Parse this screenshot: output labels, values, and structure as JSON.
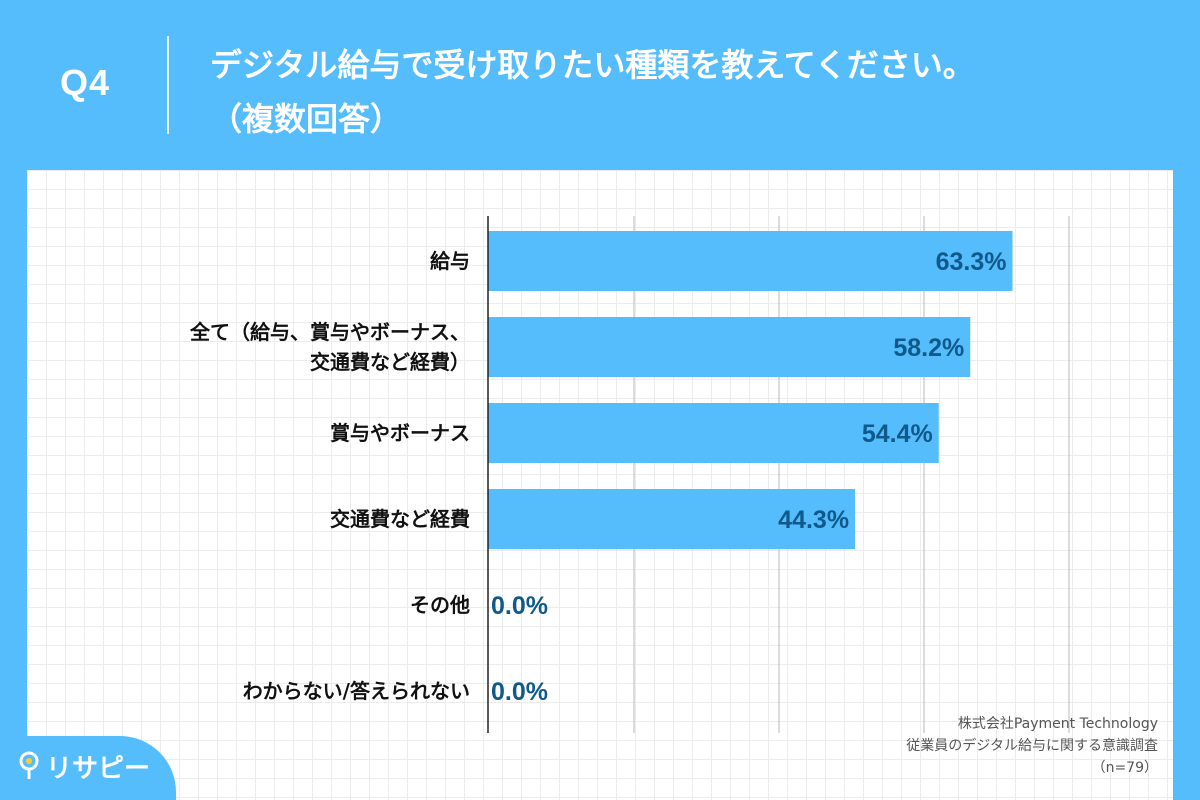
{
  "header": {
    "question_label": "Q4",
    "title_line1": "デジタル給与で受け取りたい種類を教えてください。",
    "title_line2": "（複数回答）"
  },
  "chart_data": {
    "type": "bar",
    "orientation": "horizontal",
    "categories": [
      [
        "給与"
      ],
      [
        "全て（給与、賞与やボーナス、",
        "交通費など経費）"
      ],
      [
        "賞与やボーナス"
      ],
      [
        "交通費など経費"
      ],
      [
        "その他"
      ],
      [
        "わからない/答えられない"
      ]
    ],
    "values": [
      63.3,
      58.2,
      54.4,
      44.3,
      0.0,
      0.0
    ],
    "value_labels": [
      "63.3%",
      "58.2%",
      "54.4%",
      "44.3%",
      "0.0%",
      "0.0%"
    ],
    "xlim": [
      0,
      70
    ],
    "grid": true,
    "bar_color": "#55bdfc",
    "value_label_color": "#0f5a8a"
  },
  "source": {
    "line1": "株式会社Payment Technology",
    "line2": "従業員のデジタル給与に関する意識調査",
    "line3": "（n=79）"
  },
  "logo": {
    "text": "リサピー",
    "icon": "pin-icon"
  },
  "colors": {
    "background": "#55bdfc",
    "panel": "#ffffff"
  }
}
